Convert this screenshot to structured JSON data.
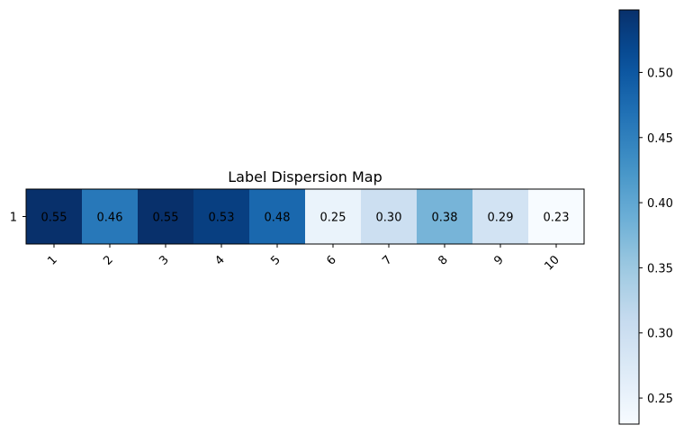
{
  "chart_data": {
    "type": "heatmap",
    "title": "Label Dispersion Map",
    "xlabel": "",
    "ylabel": "",
    "x_categories": [
      "1",
      "2",
      "3",
      "4",
      "5",
      "6",
      "7",
      "8",
      "9",
      "10"
    ],
    "y_categories": [
      "1"
    ],
    "values": [
      [
        0.55,
        0.46,
        0.55,
        0.53,
        0.48,
        0.25,
        0.3,
        0.38,
        0.29,
        0.23
      ]
    ],
    "value_labels": [
      [
        "0.55",
        "0.46",
        "0.55",
        "0.53",
        "0.48",
        "0.25",
        "0.30",
        "0.38",
        "0.29",
        "0.23"
      ]
    ],
    "colormap": "Blues",
    "vmin": 0.23,
    "vmax": 0.548,
    "colorbar": {
      "ticks": [
        0.25,
        0.3,
        0.35,
        0.4,
        0.45,
        0.5
      ],
      "tick_labels": [
        "0.25",
        "0.30",
        "0.35",
        "0.40",
        "0.45",
        "0.50"
      ]
    },
    "x_tick_rotation": "45 degrees",
    "grid": false
  }
}
